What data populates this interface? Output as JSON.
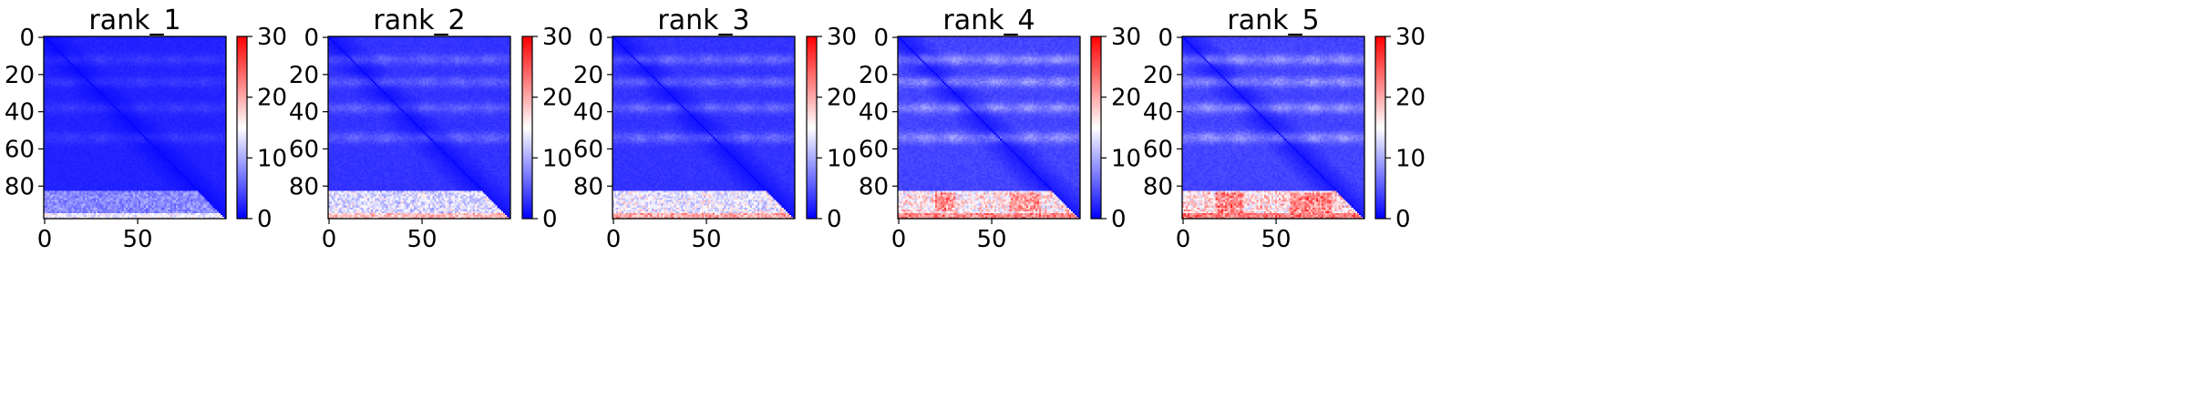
{
  "figure": {
    "colormap": "bwr",
    "colors": {
      "low": "#0000ff",
      "mid": "#ffffff",
      "high": "#ff0000",
      "axis": "#000000",
      "background": "#ffffff"
    }
  },
  "chart_data": [
    {
      "type": "heatmap",
      "title": "rank_1",
      "matrix_size": 98,
      "xticks": [
        0,
        50
      ],
      "yticks": [
        0,
        20,
        40,
        60,
        80
      ],
      "colorbar": {
        "vmin": 0,
        "vmax": 30,
        "ticks": [
          0,
          10,
          20,
          30
        ]
      },
      "baseline_value": 2,
      "band_value": 3.5,
      "bottom_rows_value": 8,
      "hot_patches": []
    },
    {
      "type": "heatmap",
      "title": "rank_2",
      "matrix_size": 98,
      "xticks": [
        0,
        50
      ],
      "yticks": [
        0,
        20,
        40,
        60,
        80
      ],
      "colorbar": {
        "vmin": 0,
        "vmax": 30,
        "ticks": [
          0,
          10,
          20,
          30
        ]
      },
      "baseline_value": 3,
      "band_value": 6,
      "bottom_rows_value": 13,
      "hot_patches": []
    },
    {
      "type": "heatmap",
      "title": "rank_3",
      "matrix_size": 98,
      "xticks": [
        0,
        50
      ],
      "yticks": [
        0,
        20,
        40,
        60,
        80
      ],
      "colorbar": {
        "vmin": 0,
        "vmax": 30,
        "ticks": [
          0,
          10,
          20,
          30
        ]
      },
      "baseline_value": 3,
      "band_value": 6.5,
      "bottom_rows_value": 14,
      "hot_patches": []
    },
    {
      "type": "heatmap",
      "title": "rank_4",
      "matrix_size": 98,
      "xticks": [
        0,
        50
      ],
      "yticks": [
        0,
        20,
        40,
        60,
        80
      ],
      "colorbar": {
        "vmin": 0,
        "vmax": 30,
        "ticks": [
          0,
          10,
          20,
          30
        ]
      },
      "baseline_value": 4,
      "band_value": 9,
      "bottom_rows_value": 16,
      "hot_patches": [
        {
          "rows": [
            84,
            93
          ],
          "cols": [
            20,
            30
          ],
          "value": 21
        },
        {
          "rows": [
            84,
            93
          ],
          "cols": [
            60,
            76
          ],
          "value": 21
        }
      ]
    },
    {
      "type": "heatmap",
      "title": "rank_5",
      "matrix_size": 98,
      "xticks": [
        0,
        50
      ],
      "yticks": [
        0,
        20,
        40,
        60,
        80
      ],
      "colorbar": {
        "vmin": 0,
        "vmax": 30,
        "ticks": [
          0,
          10,
          20,
          30
        ]
      },
      "baseline_value": 4,
      "band_value": 9,
      "bottom_rows_value": 17,
      "hot_patches": [
        {
          "rows": [
            84,
            95
          ],
          "cols": [
            18,
            32
          ],
          "value": 22
        },
        {
          "rows": [
            84,
            95
          ],
          "cols": [
            58,
            80
          ],
          "value": 22
        }
      ]
    }
  ]
}
